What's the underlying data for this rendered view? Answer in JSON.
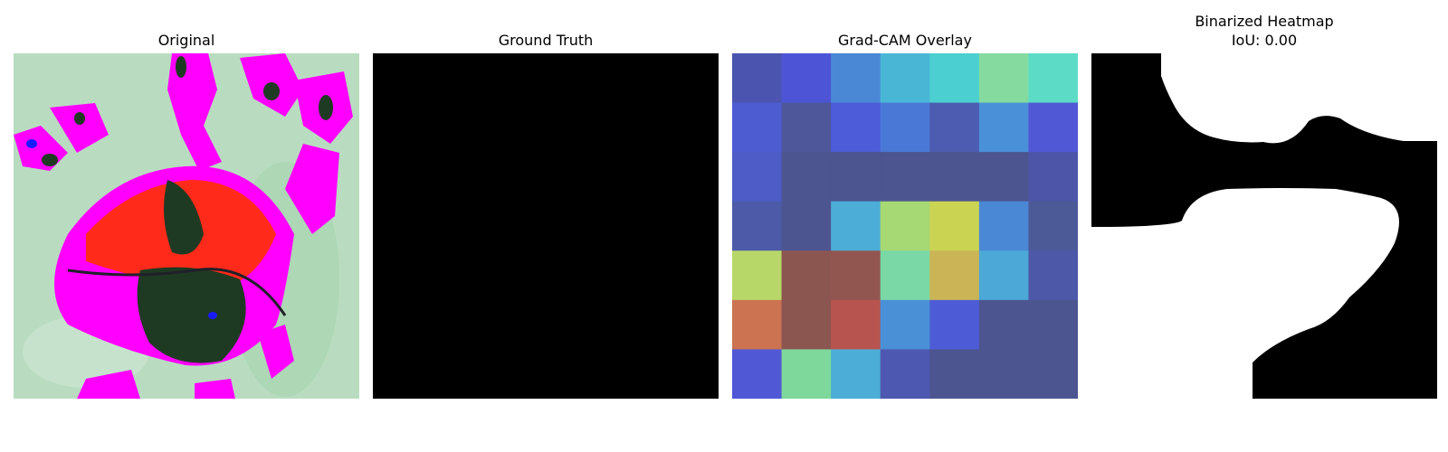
{
  "panels": [
    {
      "title": "Original"
    },
    {
      "title": "Ground Truth"
    },
    {
      "title": "Grad-CAM Overlay"
    },
    {
      "title": "Binarized Heatmap",
      "subtitle": "IoU: 0.00"
    }
  ],
  "colors": {
    "background_leaf": "#b9dcc0",
    "magenta": "#ff00ff",
    "red": "#ff2a1a",
    "dark_green": "#1f3a22",
    "blue": "#1a1aff",
    "ground_truth": "#000000",
    "mask_fg": "#ffffff",
    "mask_bg": "#000000"
  },
  "gradcam_grid": [
    [
      "#4b55b0",
      "#4d55d6",
      "#4a88d6",
      "#4ab6d6",
      "#4ccfd0",
      "#85db9f",
      "#5cdcc6"
    ],
    [
      "#4d5cd0",
      "#4d579a",
      "#4d5cd8",
      "#4a78d6",
      "#4d5cb0",
      "#4a90d8",
      "#5058d6"
    ],
    [
      "#4d5cc6",
      "#4d5590",
      "#4d5590",
      "#4d5590",
      "#4d5590",
      "#4d5590",
      "#4d55a8"
    ],
    [
      "#4d5aa8",
      "#4d5590",
      "#4cadd6",
      "#a6d874",
      "#cbd452",
      "#4a88d6",
      "#4d5a98"
    ],
    [
      "#b7d868",
      "#8c5650",
      "#925650",
      "#7ad8a6",
      "#cbb456",
      "#4ca8d6",
      "#4d58a8"
    ],
    [
      "#cc7352",
      "#8c5650",
      "#b85450",
      "#4a90d6",
      "#4d5cd6",
      "#4d5590",
      "#4d5590"
    ],
    [
      "#5058d6",
      "#7ed89c",
      "#4cadd6",
      "#4d58b0",
      "#4d5590",
      "#4d5590",
      "#4d5590"
    ]
  ]
}
